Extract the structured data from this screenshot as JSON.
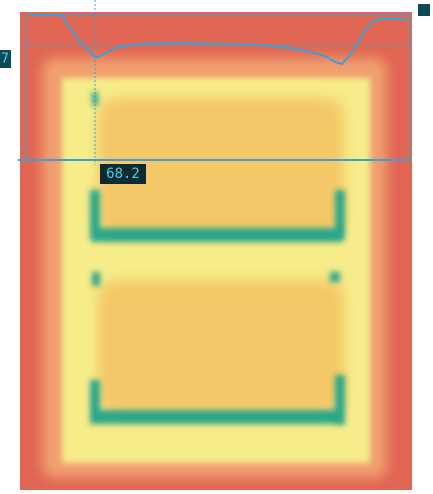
{
  "overlay": {
    "cursor_readout": "68.2",
    "scale_marker": "7"
  }
}
